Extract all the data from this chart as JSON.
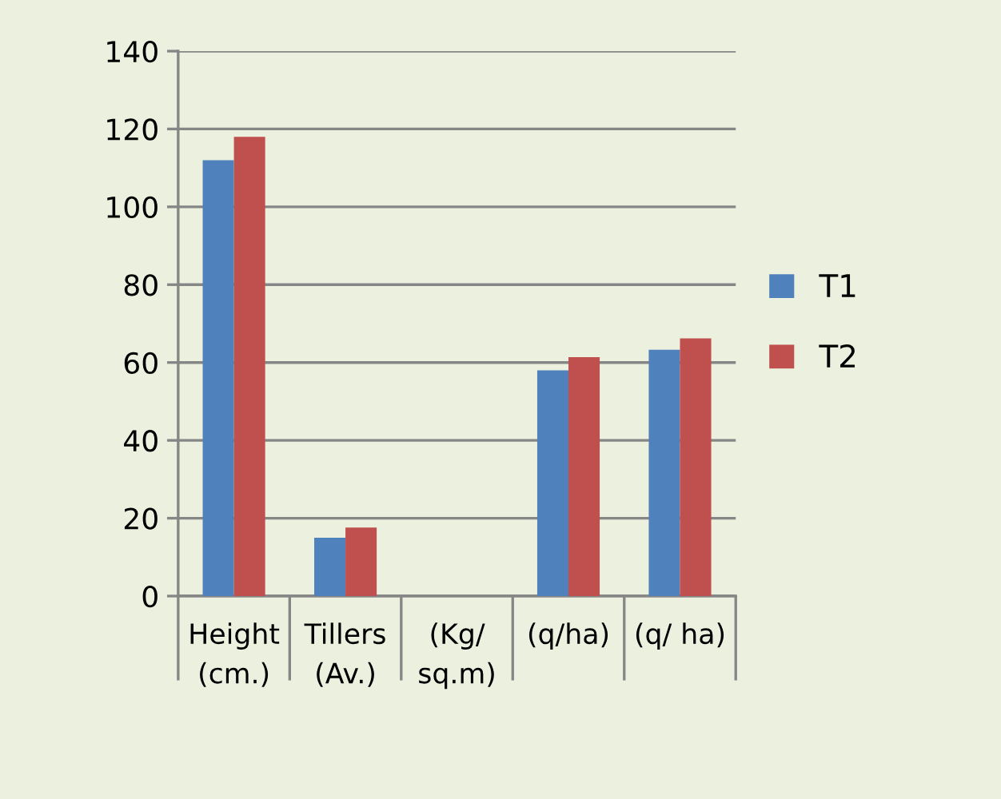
{
  "chart_data": {
    "type": "bar",
    "categories": [
      "Height\n(cm.)",
      "Tillers\n(Av.)",
      "(Kg/\nsq.m)",
      "(q/ha)",
      "(q/ ha)"
    ],
    "series": [
      {
        "name": "T1",
        "color": "#4f81bd",
        "values": [
          112,
          15,
          null,
          58,
          63.3
        ]
      },
      {
        "name": "T2",
        "color": "#c0504d",
        "values": [
          118,
          17.6,
          null,
          61.4,
          66.2
        ]
      }
    ],
    "ylim": [
      0,
      140
    ],
    "yticks": [
      0,
      20,
      40,
      60,
      80,
      100,
      120,
      140
    ],
    "grid": "y",
    "legend": "right"
  }
}
